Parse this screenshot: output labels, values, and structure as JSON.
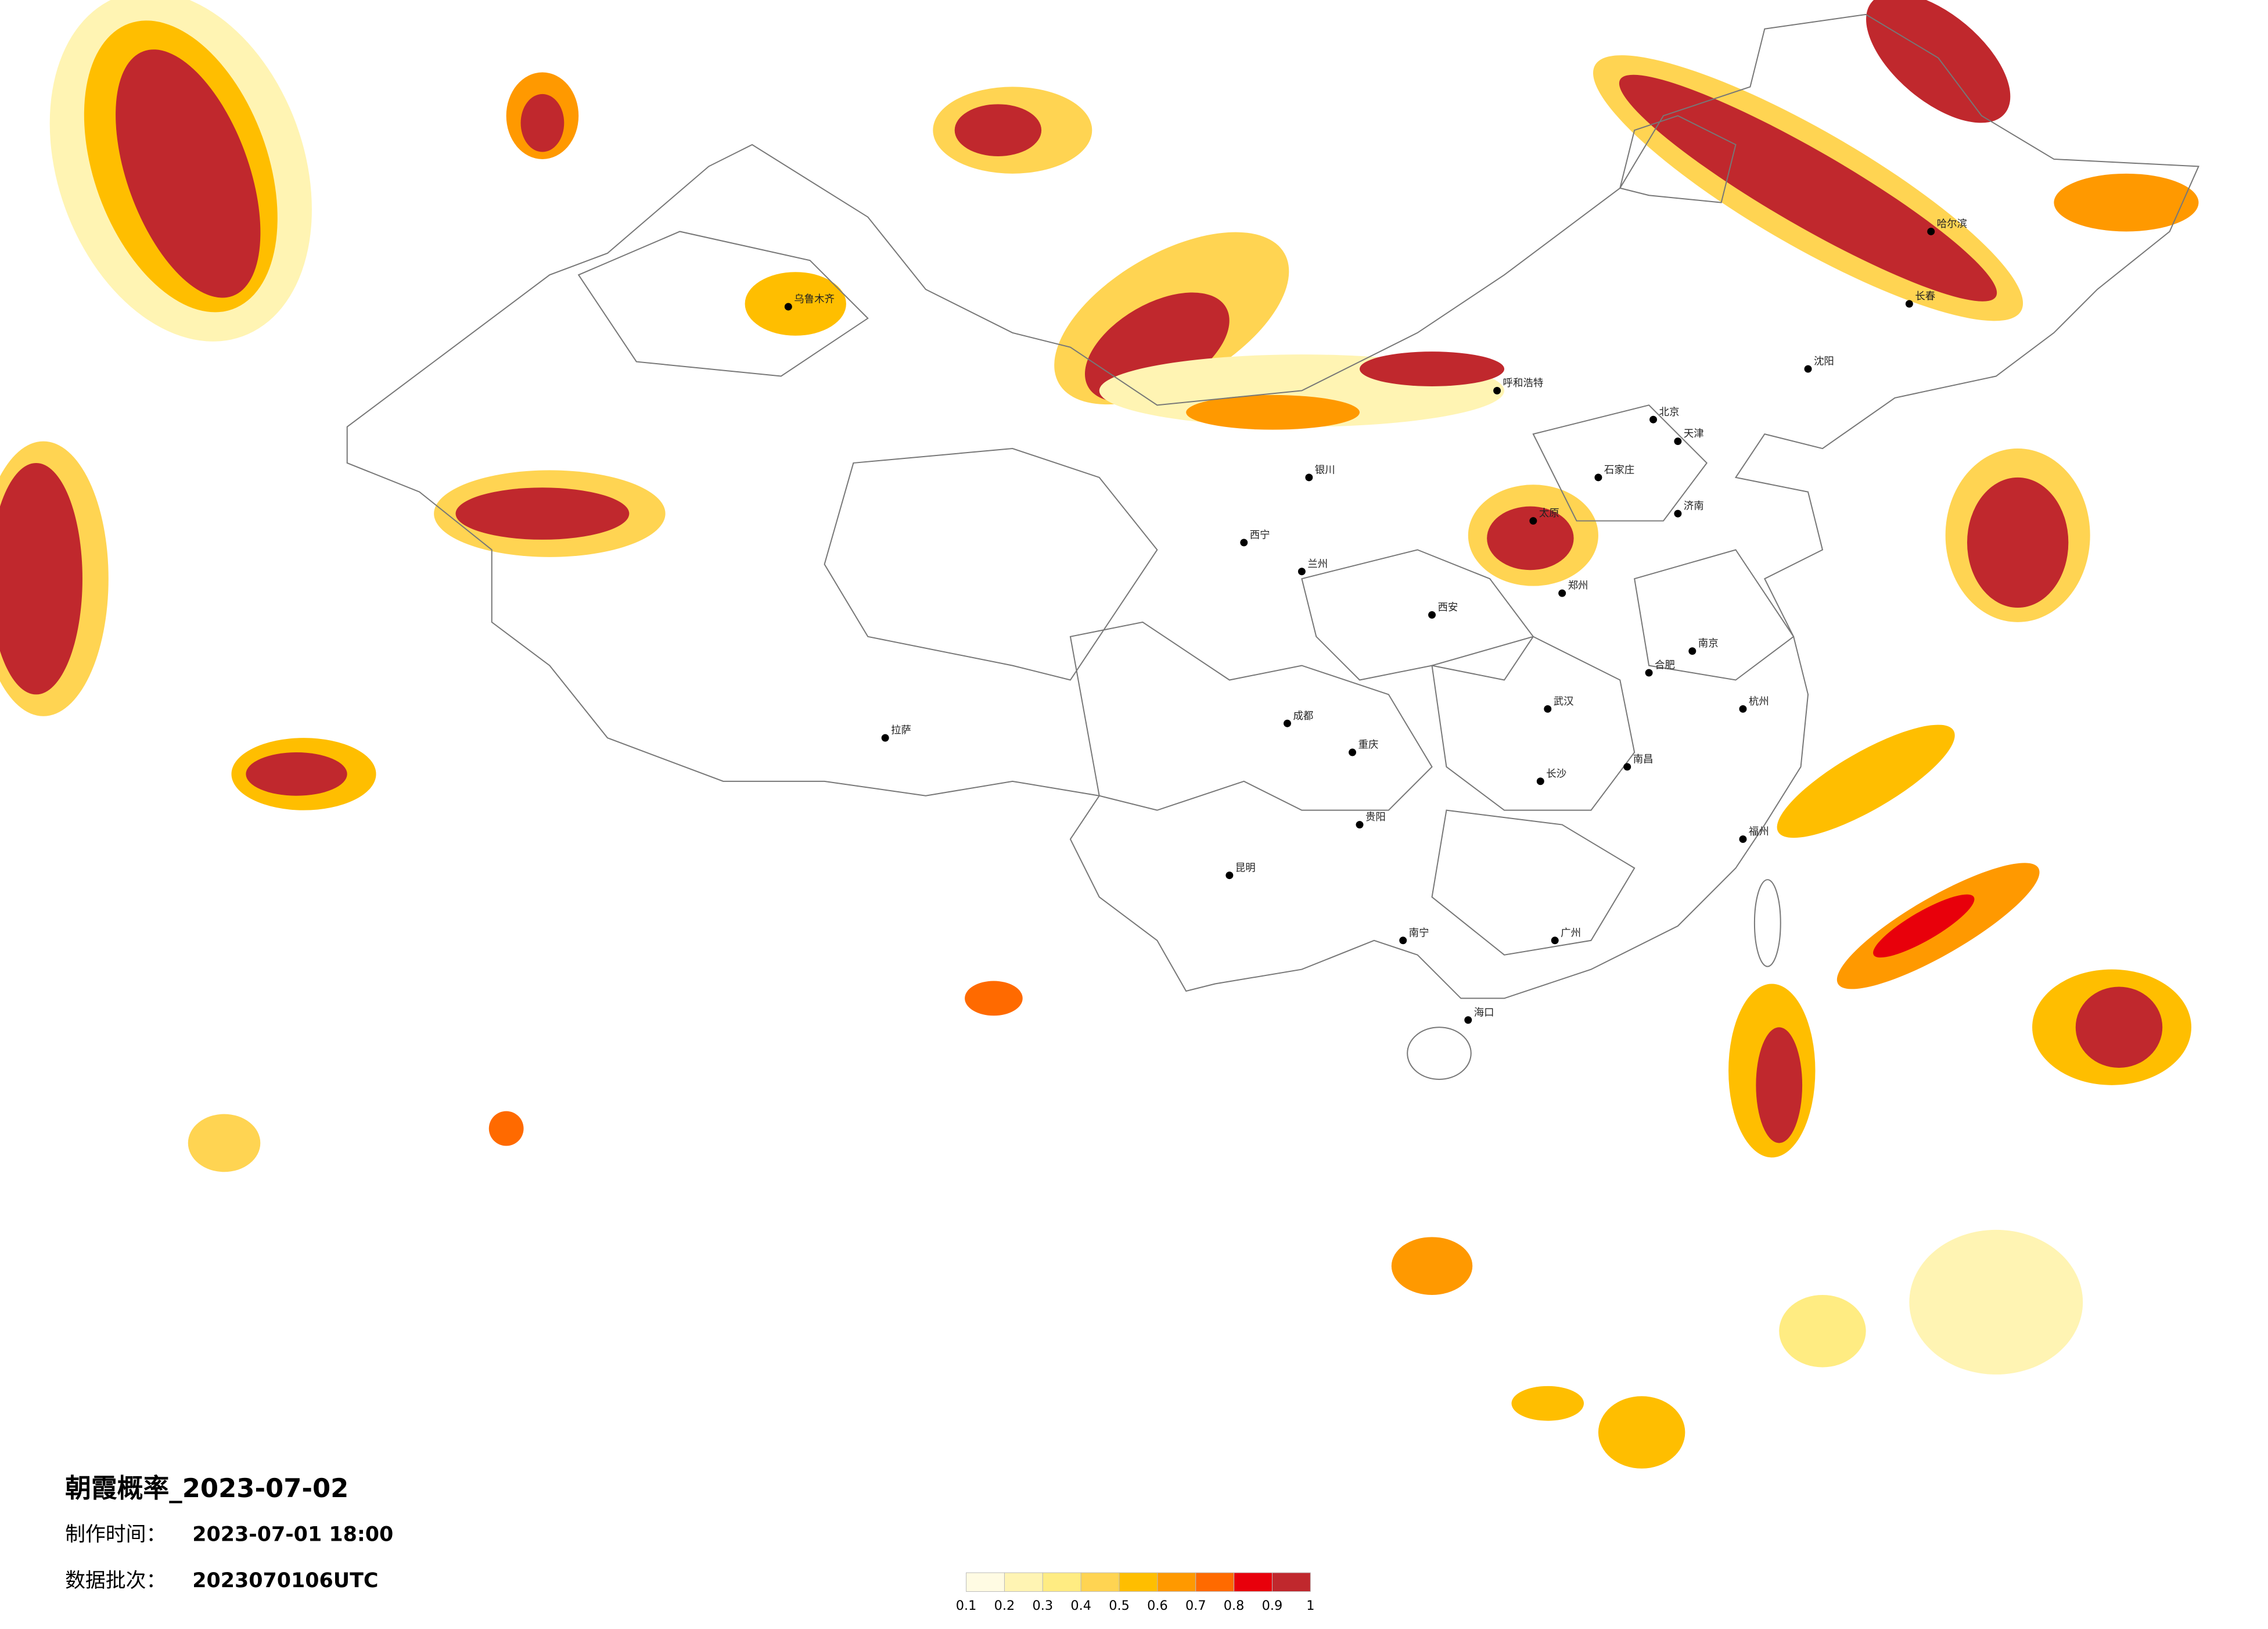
{
  "title": "朝霞概率_2023-07-02",
  "info": [
    {
      "label": "制作时间：",
      "value": "2023-07-01 18:00"
    },
    {
      "label": "数据批次：",
      "value": "2023070106UTC"
    }
  ],
  "legend": {
    "ticks": [
      0.1,
      0.2,
      0.3,
      0.4,
      0.5,
      0.6,
      0.7,
      0.8,
      0.9,
      1
    ],
    "colors": [
      "#fffbe3",
      "#fff4b3",
      "#ffec82",
      "#ffd452",
      "#ffbe00",
      "#ff9900",
      "#ff6a00",
      "#e8000b",
      "#c0282d"
    ]
  },
  "cities": [
    "乌鲁木齐",
    "拉萨",
    "西宁",
    "兰州",
    "成都",
    "重庆",
    "昆明",
    "贵阳",
    "南宁",
    "广州",
    "海口",
    "福州",
    "杭州",
    "南京",
    "合肥",
    "武汉",
    "长沙",
    "南昌",
    "郑州",
    "西安",
    "太原",
    "石家庄",
    "济南",
    "北京",
    "天津",
    "沈阳",
    "长春",
    "哈尔滨",
    "呼和浩特",
    "银川"
  ]
}
